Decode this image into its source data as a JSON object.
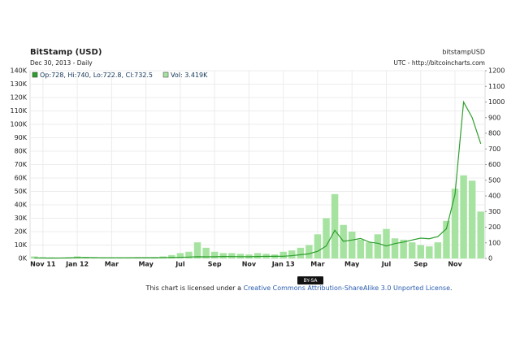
{
  "chart_data": {
    "type": "bar-line",
    "title": "BitStamp (USD)",
    "subtitle": "Dec 30, 2013 - Daily",
    "source_name": "bitstampUSD",
    "source_note": "UTC - http://bitcoincharts.com",
    "categories": [
      null,
      "Nov 11",
      null,
      null,
      null,
      "Jan 12",
      null,
      null,
      null,
      "Mar",
      null,
      null,
      null,
      "May",
      null,
      null,
      null,
      "Jul",
      null,
      null,
      null,
      "Sep",
      null,
      null,
      null,
      "Nov",
      null,
      null,
      null,
      "Jan 13",
      null,
      null,
      null,
      "Mar",
      null,
      null,
      null,
      "May",
      null,
      null,
      null,
      "Jul",
      null,
      null,
      null,
      "Sep",
      null,
      null,
      null,
      "Nov",
      null,
      null,
      null
    ],
    "series": [
      {
        "name": "Vol: 3.419K",
        "color": "#a6e3a0",
        "kind": "bar",
        "axis": "y",
        "values": [
          1500,
          1000,
          800,
          700,
          900,
          1500,
          1200,
          1000,
          900,
          800,
          900,
          700,
          800,
          900,
          1000,
          1500,
          2500,
          4000,
          5000,
          12000,
          8000,
          5000,
          4000,
          4000,
          3500,
          3000,
          4000,
          3500,
          3000,
          5000,
          6000,
          8000,
          10000,
          18000,
          30000,
          48000,
          25000,
          20000,
          14000,
          12000,
          18000,
          22000,
          15000,
          14000,
          12000,
          10000,
          9000,
          12000,
          28000,
          52000,
          62000,
          58000,
          35000
        ]
      },
      {
        "name": "Op:728, Hi:740, Lo:722.8, Cl:732.5",
        "color": "#2e9e2e",
        "kind": "line",
        "axis": "y2",
        "values": [
          3.5,
          3,
          2.5,
          3,
          4,
          6,
          6,
          5.5,
          5,
          5,
          4.9,
          5,
          5.1,
          5.1,
          5.2,
          5.5,
          6.5,
          7.5,
          8.8,
          11,
          10.5,
          11,
          12.3,
          12,
          11.5,
          11,
          12.3,
          13.3,
          13.5,
          14,
          18,
          24,
          30,
          46,
          80,
          180,
          110,
          118,
          128,
          105,
          97,
          80,
          95,
          105,
          118,
          130,
          126,
          140,
          190,
          410,
          1000,
          900,
          732.5
        ]
      }
    ],
    "ylim": [
      0,
      140000
    ],
    "yticks": [
      {
        "value": 0,
        "label": "0K"
      },
      {
        "value": 10000,
        "label": "10K"
      },
      {
        "value": 20000,
        "label": "20K"
      },
      {
        "value": 30000,
        "label": "30K"
      },
      {
        "value": 40000,
        "label": "40K"
      },
      {
        "value": 50000,
        "label": "50K"
      },
      {
        "value": 60000,
        "label": "60K"
      },
      {
        "value": 70000,
        "label": "70K"
      },
      {
        "value": 80000,
        "label": "80K"
      },
      {
        "value": 90000,
        "label": "90K"
      },
      {
        "value": 100000,
        "label": "100K"
      },
      {
        "value": 110000,
        "label": "110K"
      },
      {
        "value": 120000,
        "label": "120K"
      },
      {
        "value": 130000,
        "label": "130K"
      },
      {
        "value": 140000,
        "label": "140K"
      }
    ],
    "y2lim": [
      0,
      1200
    ],
    "y2ticks": [
      0,
      100,
      200,
      300,
      400,
      500,
      600,
      700,
      800,
      900,
      1000,
      1100,
      1200
    ],
    "grid": true,
    "badge": "BY-SA",
    "license": {
      "prefix": "This chart is licensed under a ",
      "link": "Creative Commons Attribution-ShareAlike 3.0 Unported License",
      "suffix": "."
    }
  }
}
